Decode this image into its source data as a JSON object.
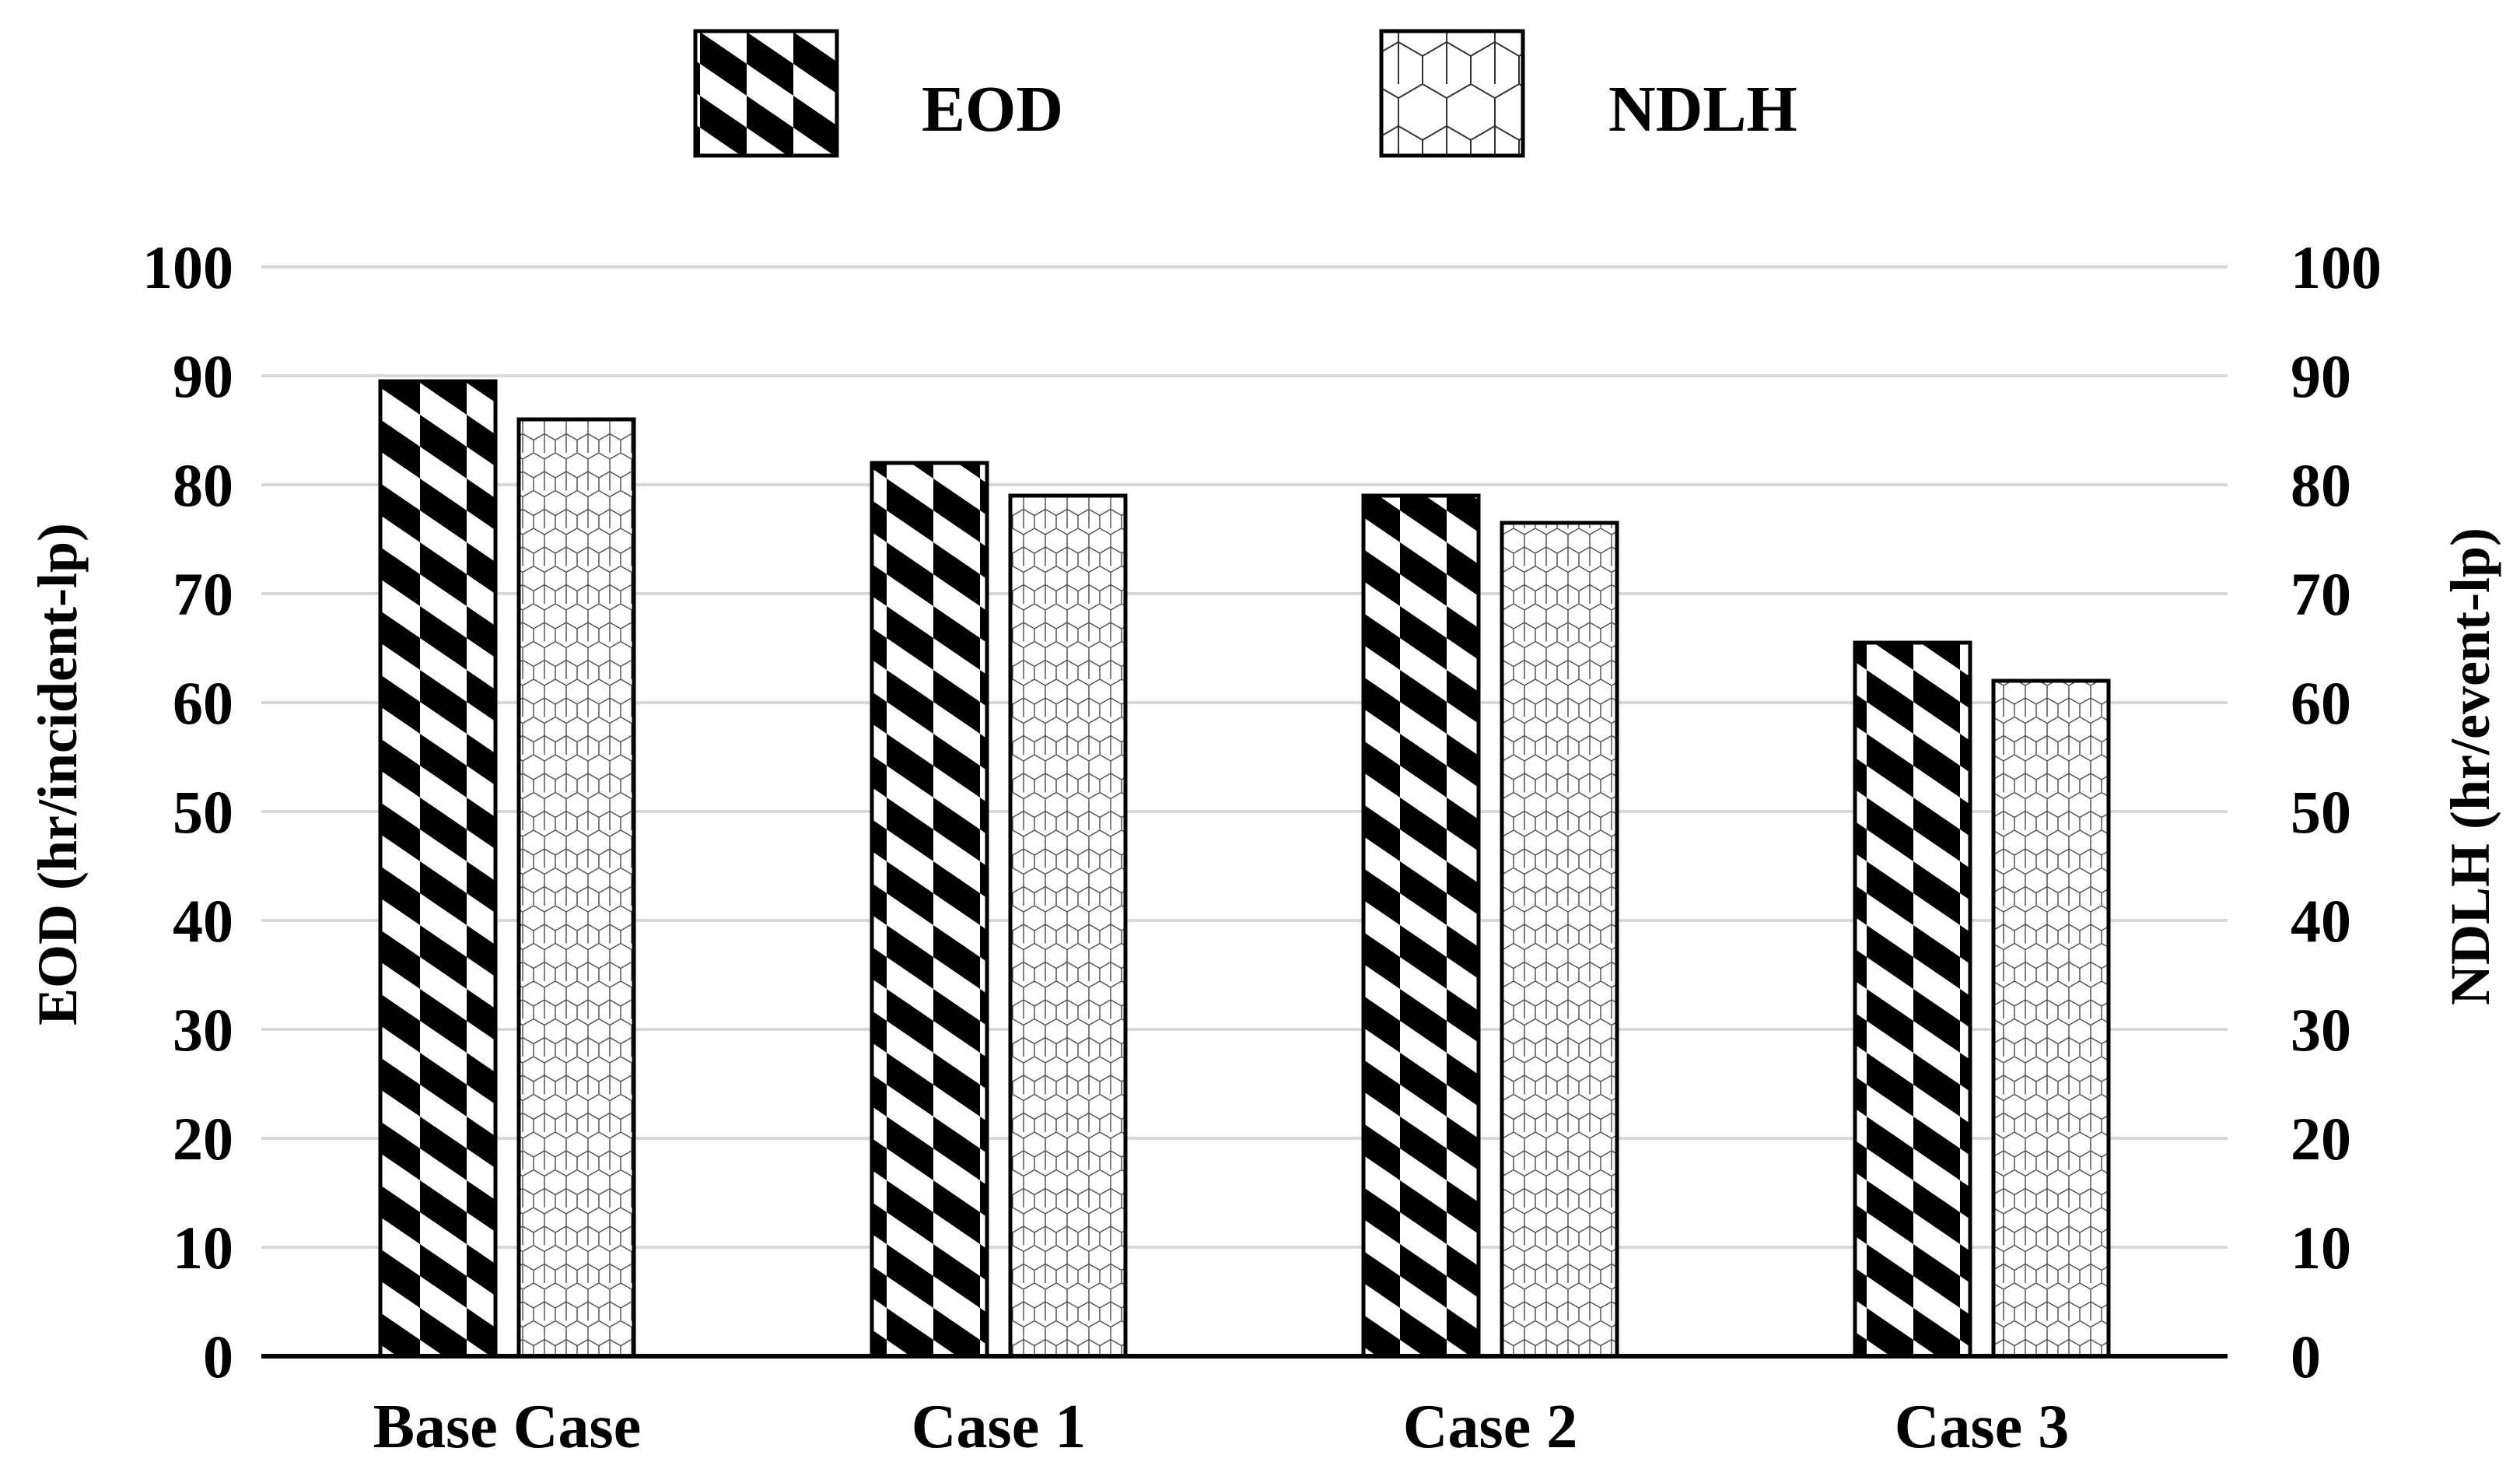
{
  "chart_data": {
    "type": "bar",
    "title": "",
    "categories": [
      "Base Case",
      "Case 1",
      "Case 2",
      "Case 3"
    ],
    "series": [
      {
        "name": "EOD",
        "axis": "left",
        "pattern": "checker-diagonal",
        "values": [
          89.5,
          82,
          79,
          65.5
        ]
      },
      {
        "name": "NDLH",
        "axis": "right",
        "pattern": "hexagon",
        "values": [
          86,
          79,
          76.5,
          62
        ]
      }
    ],
    "ylabel_left": "EOD (hr/incident-lp)",
    "ylabel_right": "NDLH (hr/event-lp)",
    "ylim": [
      0,
      100
    ],
    "yticks_left": [
      "0",
      "10",
      "20",
      "30",
      "40",
      "50",
      "60",
      "70",
      "80",
      "90",
      "100"
    ],
    "yticks_right": [
      "0",
      "10",
      "20",
      "30",
      "40",
      "50",
      "60",
      "70",
      "80",
      "90",
      "100"
    ],
    "grid": true,
    "legend_position": "top-center",
    "colors": {
      "grid": "#d9d9d9",
      "ink": "#000000",
      "paper": "#ffffff"
    }
  }
}
